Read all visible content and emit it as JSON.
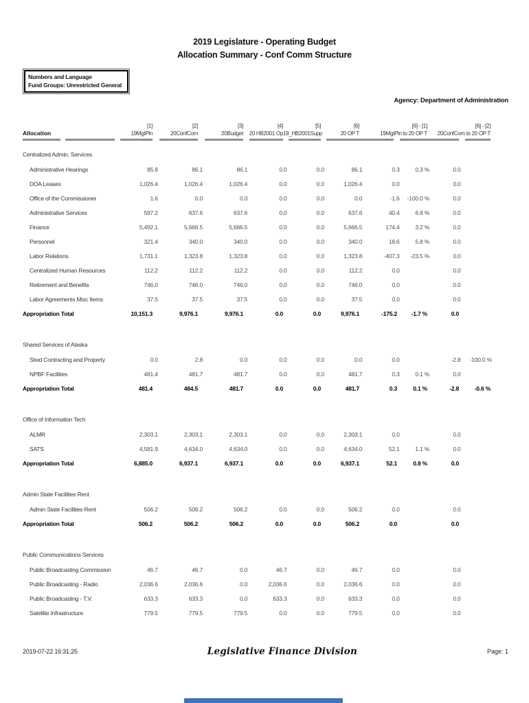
{
  "title": {
    "line1": "2019 Legislature - Operating Budget",
    "line2": "Allocation Summary - Conf Comm Structure"
  },
  "filter_box": {
    "line1": "Numbers and Language",
    "line2": "Fund Groups: Unrestricted General"
  },
  "agency": "Agency: Department of Administration",
  "table": {
    "allocation_header": "Allocation",
    "total_label": "Appropriation Total",
    "columns": [
      {
        "num": "[1]",
        "name": "19MgtPln",
        "span": 1
      },
      {
        "num": "[2]",
        "name": "20ConfCom",
        "span": 1
      },
      {
        "num": "[3]",
        "name": "20Budget",
        "span": 1
      },
      {
        "num": "[4]",
        "name": "20 HB2001 Op",
        "span": 1
      },
      {
        "num": "[5]",
        "name": "19_HB2001Supp",
        "span": 1
      },
      {
        "num": "[6]",
        "name": "20 OP T",
        "span": 1
      },
      {
        "num": "[6] - [1]",
        "name": "19MgtPln to 20 OP T",
        "span": 2
      },
      {
        "num": "[6] - [2]",
        "name": "20ConfCom to 20 OP T",
        "span": 2
      }
    ],
    "sections": [
      {
        "name": "Centralized Admin. Services",
        "rows": [
          {
            "name": "Administrative Hearings",
            "values": [
              "85.8",
              "86.1",
              "86.1",
              "0.0",
              "0.0",
              "86.1",
              "0.3",
              "0.3 %",
              "0.0",
              ""
            ]
          },
          {
            "name": "DOA Leases",
            "values": [
              "1,026.4",
              "1,026.4",
              "1,026.4",
              "0.0",
              "0.0",
              "1,026.4",
              "0.0",
              "",
              "0.0",
              ""
            ]
          },
          {
            "name": "Office of the Commissioner",
            "values": [
              "1.6",
              "0.0",
              "0.0",
              "0.0",
              "0.0",
              "0.0",
              "-1.6",
              "-100.0 %",
              "0.0",
              ""
            ]
          },
          {
            "name": "Administrative Services",
            "values": [
              "597.2",
              "637.6",
              "637.6",
              "0.0",
              "0.0",
              "637.6",
              "40.4",
              "6.8 %",
              "0.0",
              ""
            ]
          },
          {
            "name": "Finance",
            "values": [
              "5,492.1",
              "5,666.5",
              "5,666.5",
              "0.0",
              "0.0",
              "5,666.5",
              "174.4",
              "3.2 %",
              "0.0",
              ""
            ]
          },
          {
            "name": "Personnel",
            "values": [
              "321.4",
              "340.0",
              "340.0",
              "0.0",
              "0.0",
              "340.0",
              "18.6",
              "5.8 %",
              "0.0",
              ""
            ]
          },
          {
            "name": "Labor Relations",
            "values": [
              "1,731.1",
              "1,323.8",
              "1,323.8",
              "0.0",
              "0.0",
              "1,323.8",
              "-407.3",
              "-23.5 %",
              "0.0",
              ""
            ]
          },
          {
            "name": "Centralized Human Resources",
            "values": [
              "112.2",
              "112.2",
              "112.2",
              "0.0",
              "0.0",
              "112.2",
              "0.0",
              "",
              "0.0",
              ""
            ]
          },
          {
            "name": "Retirement and Benefits",
            "values": [
              "746.0",
              "746.0",
              "746.0",
              "0.0",
              "0.0",
              "746.0",
              "0.0",
              "",
              "0.0",
              ""
            ]
          },
          {
            "name": "Labor Agreements Misc Items",
            "values": [
              "37.5",
              "37.5",
              "37.5",
              "0.0",
              "0.0",
              "37.5",
              "0.0",
              "",
              "0.0",
              ""
            ]
          }
        ],
        "total": {
          "values": [
            "10,151.3",
            "9,976.1",
            "9,976.1",
            "0.0",
            "0.0",
            "9,976.1",
            "-175.2",
            "-1.7 %",
            "0.0",
            ""
          ]
        }
      },
      {
        "name": "Shared Services of Alaska",
        "rows": [
          {
            "name": "Stwd Contracting and Property",
            "values": [
              "0.0",
              "2.8",
              "0.0",
              "0.0",
              "0.0",
              "0.0",
              "0.0",
              "",
              "-2.8",
              "-100.0 %"
            ]
          },
          {
            "name": "NPBF Facilities",
            "values": [
              "481.4",
              "481.7",
              "481.7",
              "0.0",
              "0.0",
              "481.7",
              "0.3",
              "0.1 %",
              "0.0",
              ""
            ]
          }
        ],
        "total": {
          "values": [
            "481.4",
            "484.5",
            "481.7",
            "0.0",
            "0.0",
            "481.7",
            "0.3",
            "0.1 %",
            "-2.8",
            "-0.6 %"
          ]
        }
      },
      {
        "name": "Office of Information Tech",
        "rows": [
          {
            "name": "ALMR",
            "values": [
              "2,303.1",
              "2,303.1",
              "2,303.1",
              "0.0",
              "0.0",
              "2,303.1",
              "0.0",
              "",
              "0.0",
              ""
            ]
          },
          {
            "name": "SATS",
            "values": [
              "4,581.9",
              "4,634.0",
              "4,634.0",
              "0.0",
              "0.0",
              "4,634.0",
              "52.1",
              "1.1 %",
              "0.0",
              ""
            ]
          }
        ],
        "total": {
          "values": [
            "6,885.0",
            "6,937.1",
            "6,937.1",
            "0.0",
            "0.0",
            "6,937.1",
            "52.1",
            "0.8 %",
            "0.0",
            ""
          ]
        }
      },
      {
        "name": "Admin State Facilities Rent",
        "rows": [
          {
            "name": "Admin State Facilities Rent",
            "values": [
              "506.2",
              "506.2",
              "506.2",
              "0.0",
              "0.0",
              "506.2",
              "0.0",
              "",
              "0.0",
              ""
            ]
          }
        ],
        "total": {
          "values": [
            "506.2",
            "506.2",
            "506.2",
            "0.0",
            "0.0",
            "506.2",
            "0.0",
            "",
            "0.0",
            ""
          ]
        }
      },
      {
        "name": "Public Communications Services",
        "rows": [
          {
            "name": "Public Broadcasting Commission",
            "values": [
              "46.7",
              "46.7",
              "0.0",
              "46.7",
              "0.0",
              "46.7",
              "0.0",
              "",
              "0.0",
              ""
            ]
          },
          {
            "name": "Public Broadcasting - Radio",
            "values": [
              "2,036.6",
              "2,036.6",
              "0.0",
              "2,036.6",
              "0.0",
              "2,036.6",
              "0.0",
              "",
              "0.0",
              ""
            ]
          },
          {
            "name": "Public Broadcasting - T.V.",
            "values": [
              "633.3",
              "633.3",
              "0.0",
              "633.3",
              "0.0",
              "633.3",
              "0.0",
              "",
              "0.0",
              ""
            ]
          },
          {
            "name": "Satellite Infrastructure",
            "values": [
              "779.5",
              "779.5",
              "779.5",
              "0.0",
              "0.0",
              "779.5",
              "0.0",
              "",
              "0.0",
              ""
            ]
          }
        ],
        "total": null
      }
    ]
  },
  "footer": {
    "timestamp": "2019-07-22 16:31:25",
    "center": "Legislative Finance Division",
    "page": "Page: 1"
  },
  "colors": {
    "scrollbar_accent": "#3b74ba",
    "underline_gray": "#8f8f8f"
  }
}
